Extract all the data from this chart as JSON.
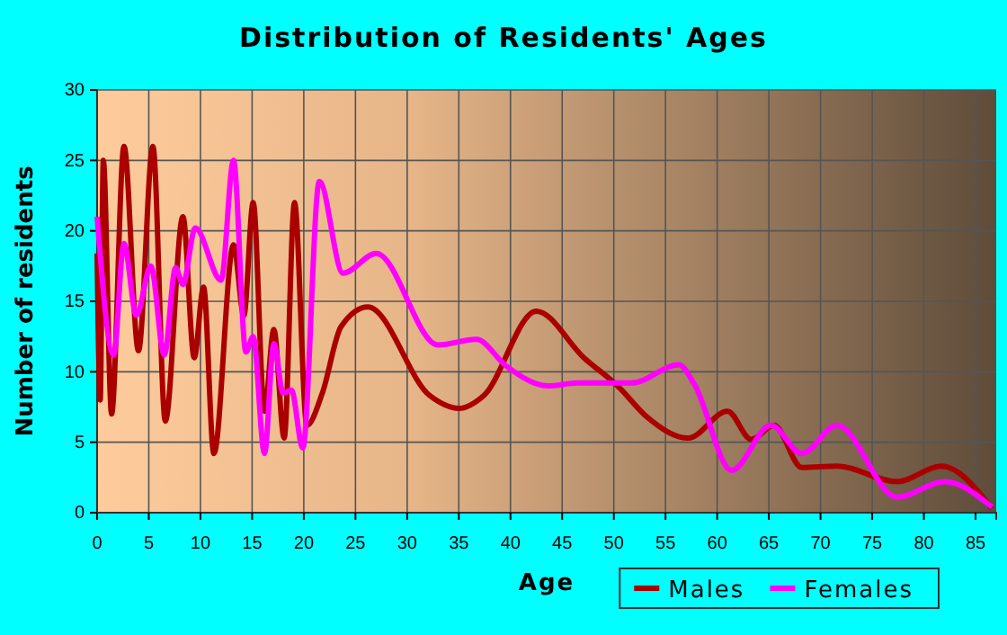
{
  "chart_data": {
    "type": "line",
    "title": "Distribution of Residents' Ages",
    "xlabel": "Age",
    "ylabel": "Number of residents",
    "xlim": [
      0,
      87
    ],
    "ylim": [
      0,
      30
    ],
    "xticks": [
      0,
      5,
      10,
      15,
      20,
      25,
      30,
      35,
      40,
      45,
      50,
      55,
      60,
      65,
      70,
      75,
      80,
      85
    ],
    "yticks": [
      0,
      5,
      10,
      15,
      20,
      25,
      30
    ],
    "grid": true,
    "legend": "bottom right",
    "line_style": "solid",
    "series": [
      {
        "name": "Males",
        "color": "#aa0000",
        "x": [
          0,
          0.3,
          0.6,
          1.4,
          2.6,
          4,
          5.4,
          6.6,
          8.3,
          9.4,
          10.3,
          11.3,
          13.2,
          14.2,
          15.1,
          16.2,
          17.1,
          18.1,
          19.1,
          20.3,
          21.8,
          23.6,
          26.2,
          32.2,
          35,
          37.4,
          42.5,
          47.1,
          50.5,
          53.2,
          57.2,
          61,
          63.3,
          65.5,
          68.2,
          71.6,
          77.4,
          81.7,
          86.6
        ],
        "values": [
          18.4,
          8,
          25,
          7,
          26,
          11.5,
          26,
          6.5,
          21,
          11,
          16,
          4.2,
          19,
          14,
          22,
          7.2,
          13,
          5.3,
          22,
          6.2,
          8.5,
          13.2,
          14.6,
          8.3,
          7.4,
          8.3,
          14.3,
          11,
          8.9,
          6.8,
          5.3,
          7.2,
          5.2,
          6.2,
          3.2,
          3.3,
          2.2,
          3.3,
          0.3
        ]
      },
      {
        "name": "Females",
        "color": "#ff00ff",
        "x": [
          0,
          1.6,
          2.6,
          3.8,
          5.2,
          6.5,
          7.6,
          8.3,
          9.5,
          12,
          13.2,
          14.4,
          15.1,
          16.2,
          17.1,
          18,
          18.8,
          19.9,
          21.5,
          23.8,
          27,
          33,
          36.7,
          39.6,
          43.6,
          46.5,
          51.7,
          56.3,
          57.8,
          61.4,
          65.2,
          68.2,
          71.6,
          77.4,
          82,
          86.6
        ],
        "values": [
          21,
          11.2,
          19.1,
          14,
          17.5,
          11.2,
          17.4,
          16.2,
          20.2,
          16.5,
          25,
          11.4,
          12.5,
          4.2,
          12,
          8.5,
          8.7,
          4.6,
          23.5,
          17,
          18.4,
          11.9,
          12.3,
          10.4,
          9,
          9.2,
          9.2,
          10.5,
          9.1,
          3,
          6.2,
          4.2,
          6.2,
          1.1,
          2.2,
          0.4
        ]
      }
    ]
  }
}
